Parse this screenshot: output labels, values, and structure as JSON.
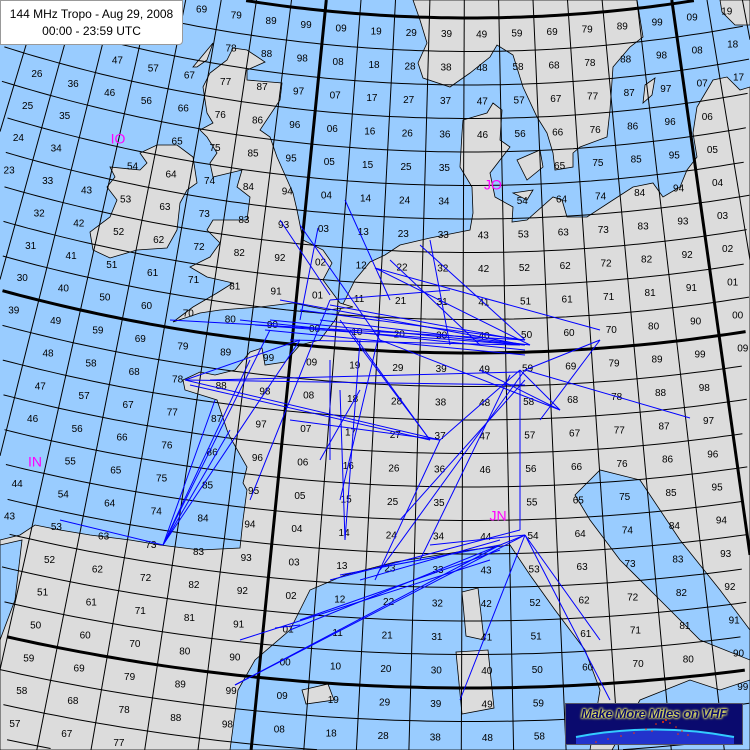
{
  "title": {
    "line1": "144 MHz Tropo - Aug 29, 2008",
    "line2": "00:00 - 23:59 UTC"
  },
  "logo": {
    "text": "Make More Miles on VHF"
  },
  "colors": {
    "sea": "#99ccff",
    "land": "#dcdcdc",
    "paths": "#0000ff",
    "field_labels": "#ff00ff",
    "logo_bg": "#0a0a6e"
  },
  "fields": {
    "io": "IO",
    "jo": "JO",
    "in": "IN",
    "jn": "JN"
  },
  "grid": {
    "lon_digits": [
      "8",
      "9",
      "0",
      "1",
      "2",
      "3",
      "4",
      "5",
      "6",
      "7",
      "8",
      "9",
      "0",
      "1",
      "2",
      "3",
      "4",
      "5",
      "6",
      "7",
      "8",
      "9",
      "0",
      "1",
      "2",
      "3",
      "4"
    ],
    "lat_digits": [
      "0",
      "9",
      "8",
      "7",
      "6",
      "5",
      "4",
      "3",
      "2",
      "1",
      "0",
      "9",
      "8",
      "7",
      "6",
      "5",
      "4",
      "3",
      "2",
      "1",
      "0",
      "9",
      "8",
      "7",
      "6"
    ]
  }
}
